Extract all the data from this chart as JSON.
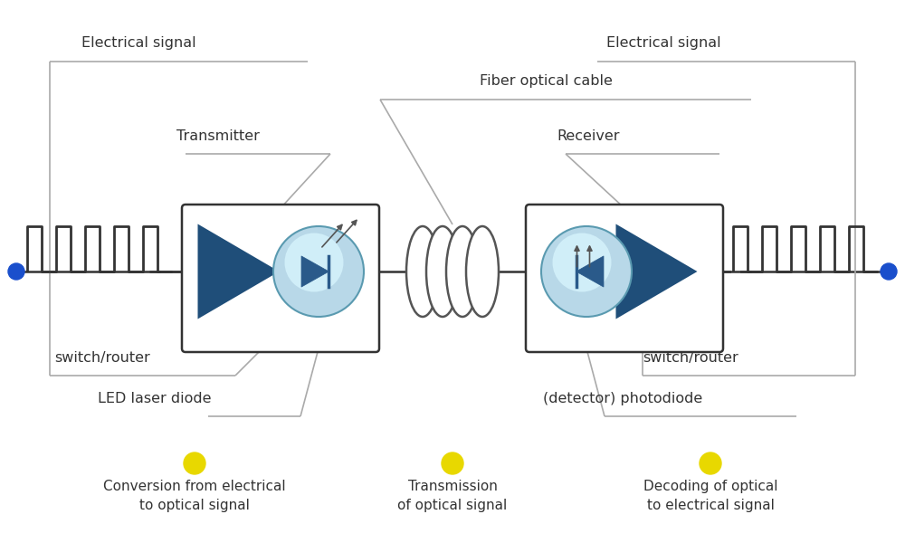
{
  "bg_color": "#ffffff",
  "line_color": "#aaaaaa",
  "dark_line": "#333333",
  "box_edge": "#333333",
  "tri_dark": "#1f4e79",
  "tri_light": "#2e75b6",
  "circle_fill": "#b8d8e8",
  "circle_grad_top": "#d0eef8",
  "circle_edge": "#5a9ab0",
  "yellow_dot": "#e8d800",
  "blue_dot": "#1a4fcc",
  "label_color": "#333333",
  "labels": {
    "elec_left": "Electrical signal",
    "elec_right": "Electrical signal",
    "fiber": "Fiber optical cable",
    "transmitter": "Transmitter",
    "receiver": "Receiver",
    "sw_left": "switch/router",
    "sw_right": "switch/router",
    "led": "LED laser diode",
    "detector": "(detector) photodiode",
    "leg1": "Conversion from electrical\nto optical signal",
    "leg2": "Transmission\nof optical signal",
    "leg3": "Decoding of optical\nto electrical signal"
  },
  "figsize": [
    10.0,
    6.0
  ],
  "dpi": 100
}
